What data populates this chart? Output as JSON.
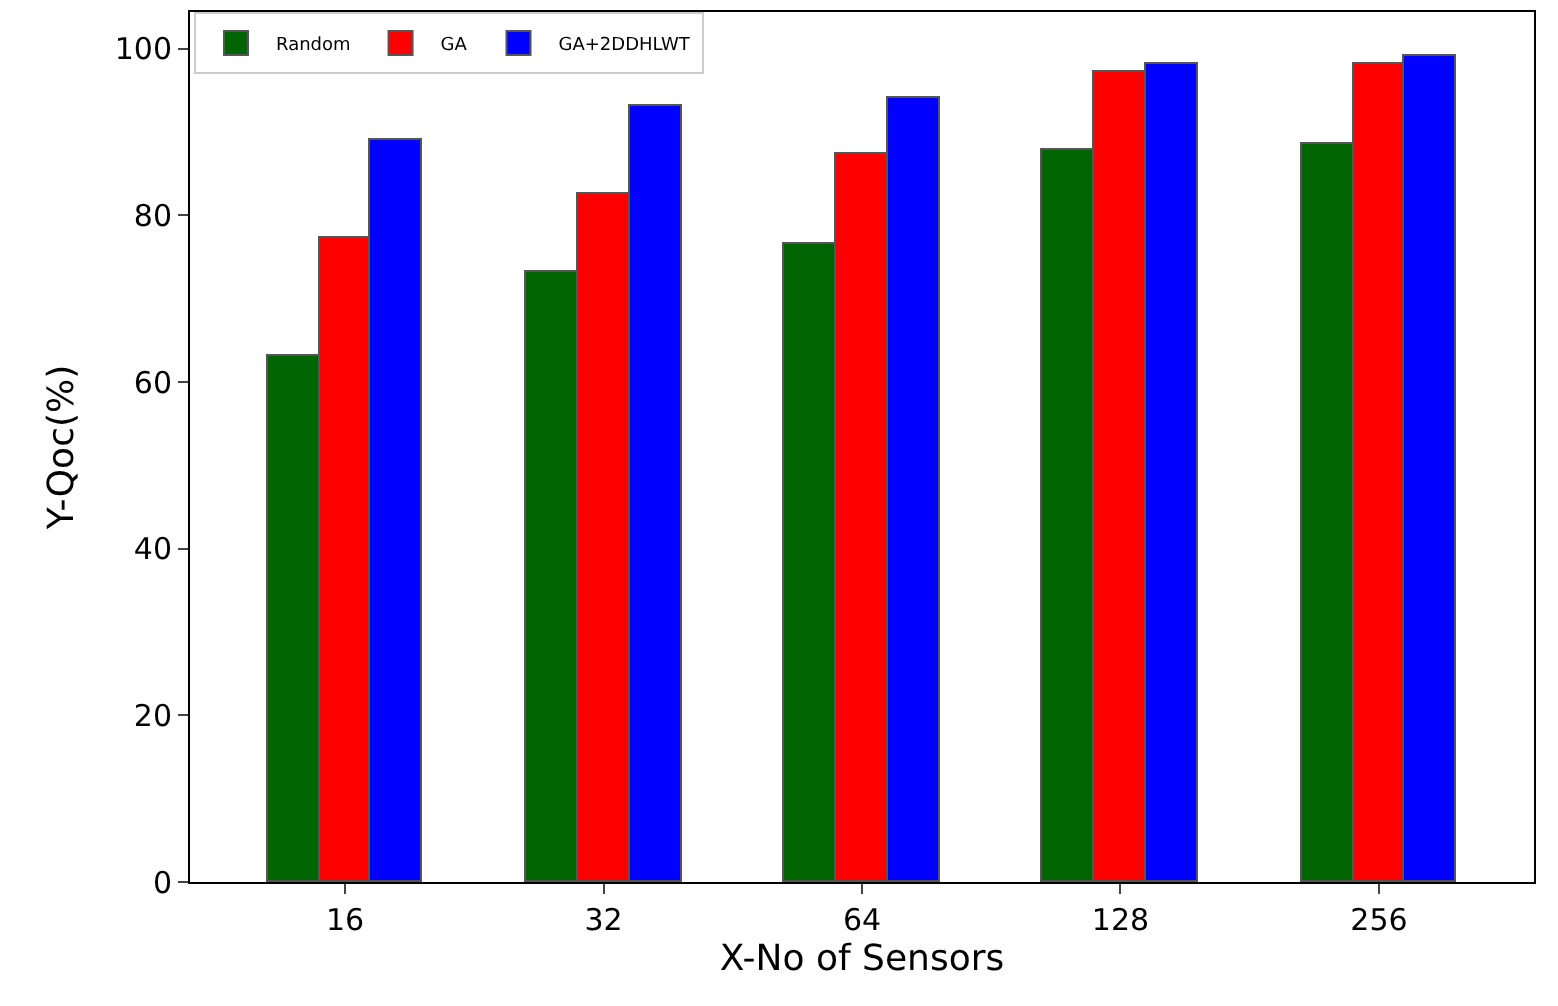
{
  "chart_data": {
    "type": "bar",
    "xlabel": "X-No of Sensors",
    "ylabel": "Y-Qoc(%)",
    "categories": [
      "16",
      "32",
      "64",
      "128",
      "256"
    ],
    "series": [
      {
        "name": "Random",
        "color": "#006400",
        "values": [
          63.1,
          73.2,
          76.5,
          87.8,
          88.5
        ]
      },
      {
        "name": "GA",
        "color": "#ff0000",
        "values": [
          77.2,
          82.5,
          87.4,
          97.2,
          98.2
        ]
      },
      {
        "name": "GA+2DDHLWT",
        "color": "#0000ff",
        "values": [
          89.1,
          93.2,
          94.2,
          98.2,
          99.1
        ]
      }
    ],
    "ylim": [
      0,
      104.4
    ],
    "yticks": [
      0,
      20,
      40,
      60,
      80,
      100
    ],
    "legend": "top left"
  }
}
